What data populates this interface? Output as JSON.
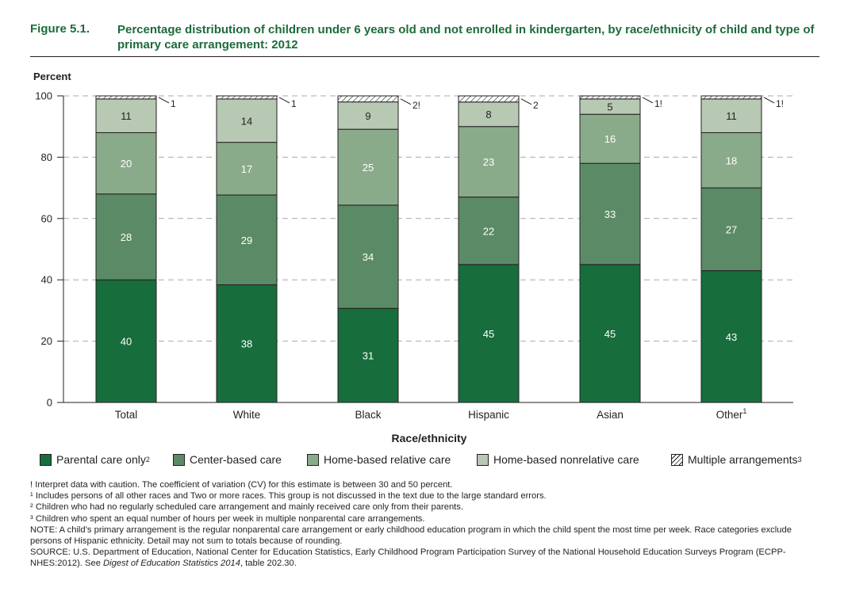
{
  "figure_number": "Figure 5.1.",
  "figure_title": "Percentage distribution of children under 6 years old and not enrolled in kindergarten, by race/ethnicity of child and type of primary care arrangement: 2012",
  "colors": {
    "parental": "#176d3c",
    "center": "#5b8b66",
    "home_relative": "#8aab8a",
    "home_nonrelative": "#b7c8b3",
    "multiple": "#ffffff",
    "title": "#1d6b3a"
  },
  "chart_data": {
    "type": "bar",
    "stacked": true,
    "ylabel": "Percent",
    "xlabel": "Race/ethnicity",
    "ylim": [
      0,
      100
    ],
    "yticks": [
      0,
      20,
      40,
      60,
      80,
      100
    ],
    "grid": "dashed horizontal",
    "categories": [
      "Total",
      "White",
      "Black",
      "Hispanic",
      "Asian",
      "Other"
    ],
    "category_superscripts": [
      "",
      "",
      "",
      "",
      "",
      "1"
    ],
    "series": [
      {
        "name": "Parental care only",
        "superscript": "2",
        "values": [
          40,
          38,
          31,
          45,
          45,
          43
        ],
        "labels": [
          "40",
          "38",
          "31",
          "45",
          "45",
          "43"
        ]
      },
      {
        "name": "Center-based care",
        "superscript": "",
        "values": [
          28,
          29,
          34,
          22,
          33,
          27
        ],
        "labels": [
          "28",
          "29",
          "34",
          "22",
          "33",
          "27"
        ]
      },
      {
        "name": "Home-based relative care",
        "superscript": "",
        "values": [
          20,
          17,
          25,
          23,
          16,
          18
        ],
        "labels": [
          "20",
          "17",
          "25",
          "23",
          "16",
          "18"
        ]
      },
      {
        "name": "Home-based nonrelative care",
        "superscript": "",
        "values": [
          11,
          14,
          9,
          8,
          5,
          11
        ],
        "labels": [
          "11",
          "14",
          "9",
          "8",
          "5",
          "11"
        ]
      },
      {
        "name": "Multiple arrangements",
        "superscript": "3",
        "values": [
          1,
          1,
          2,
          2,
          1,
          1
        ],
        "labels": [
          "1",
          "1",
          "2!",
          "2",
          "1!",
          "1!"
        ]
      }
    ]
  },
  "notes": [
    "! Interpret data with caution. The coefficient of variation (CV) for this estimate is between 30 and 50 percent.",
    "¹ Includes persons of all other races and Two or more races. This group is not discussed in the text due to the large standard errors.",
    "² Children who had no regularly scheduled care arrangement and mainly received care only from their parents.",
    "³ Children who spent an equal number of hours per week in multiple nonparental care arrangements.",
    "NOTE: A child’s primary arrangement is the regular nonparental care arrangement or early childhood education program in which the child spent the most time per week. Race categories exclude persons of Hispanic ethnicity. Detail may not sum to totals because of rounding."
  ],
  "source": {
    "prefix": "SOURCE: U.S. Department of Education, National Center for Education Statistics, Early Childhood Program Participation Survey of the National Household Education Surveys Program (ECPP-NHES:2012). See ",
    "italic": "Digest of Education Statistics 2014",
    "suffix": ", table 202.30."
  }
}
